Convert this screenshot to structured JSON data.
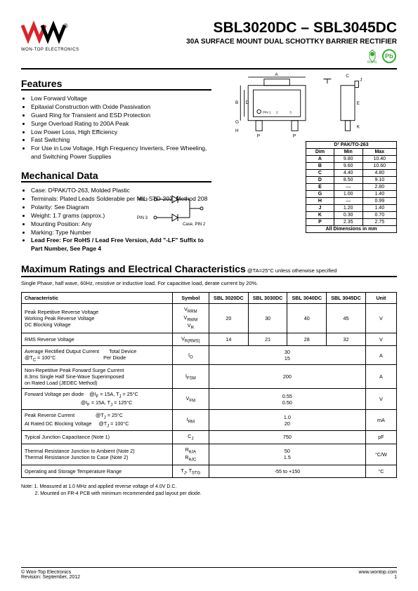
{
  "header": {
    "logo_text": "WON-TOP ELECTRONICS",
    "part_range": "SBL3020DC – SBL3045DC",
    "subtitle": "30A SURFACE MOUNT DUAL SCHOTTKY BARRIER RECTIFIER",
    "rohs_label": "RoHS",
    "pb_label": "Pb"
  },
  "features": {
    "title": "Features",
    "items": [
      "Low Forward Voltage",
      "Epitaxial Construction with Oxide Passivation",
      "Guard Ring for Transient and ESD Protection",
      "Surge Overload Rating to 200A Peak",
      "Low Power Loss, High Efficiency",
      "Fast Switching",
      "For Use in Low Voltage, High Frequency Inverters, Free Wheeling, and Switching Power Supplies"
    ]
  },
  "mechanical": {
    "title": "Mechanical Data",
    "items": [
      "Case: D²PAK/TO-263, Molded Plastic",
      "Terminals: Plated Leads Solderable per MIL-STD-202, Method 208",
      "Polarity: See Diagram",
      "Weight: 1.7 grams (approx.)",
      "Mounting Position: Any",
      "Marking: Type Number"
    ],
    "leadfree_bold": "Lead Free: For RoHS / Lead Free Version, Add \"-LF\" Suffix to Part Number, See Page 4"
  },
  "package_labels": {
    "A": "A",
    "B": "B",
    "C": "C",
    "D": "D",
    "E": "E",
    "G": "G",
    "H": "H",
    "J": "J",
    "K": "K",
    "P": "P",
    "pin1": "PIN 1",
    "pin2": "2",
    "pin3": "3",
    "sch_pin1": "PIN 1",
    "sch_pin3": "PIN 3",
    "sch_case": "Case, PIN 2"
  },
  "dimensions": {
    "header": "D² PAK/TO-263",
    "col_dim": "Dim",
    "col_min": "Min",
    "col_max": "Max",
    "rows": [
      {
        "d": "A",
        "min": "9.80",
        "max": "10.40"
      },
      {
        "d": "B",
        "min": "9.60",
        "max": "10.60"
      },
      {
        "d": "C",
        "min": "4.40",
        "max": "4.80"
      },
      {
        "d": "D",
        "min": "8.50",
        "max": "9.10"
      },
      {
        "d": "E",
        "min": "—",
        "max": "2.80"
      },
      {
        "d": "G",
        "min": "1.00",
        "max": "1.40"
      },
      {
        "d": "H",
        "min": "—",
        "max": "0.99"
      },
      {
        "d": "J",
        "min": "1.20",
        "max": "1.40"
      },
      {
        "d": "K",
        "min": "0.30",
        "max": "0.70"
      },
      {
        "d": "P",
        "min": "2.35",
        "max": "2.75"
      }
    ],
    "footer": "All Dimensions in mm"
  },
  "ratings": {
    "title": "Maximum Ratings and Electrical Characteristics",
    "cond": "@TA=25°C unless otherwise specified",
    "note": "Single Phase, half wave, 60Hz, resistive or inductive load. For capacitive load, derate current by 20%.",
    "cols": {
      "char": "Characteristic",
      "sym": "Symbol",
      "p1": "SBL 3020DC",
      "p2": "SBL 3030DC",
      "p3": "SBL 3040DC",
      "p4": "SBL 3045DC",
      "unit": "Unit"
    },
    "rows": [
      {
        "char": "Peak Repetitive Reverse Voltage<br>Working Peak Reverse Voltage<br>DC Blocking Voltage",
        "sym": "V<sub>RRM</sub><br>V<sub>RWM</sub><br>V<sub>R</sub>",
        "v": [
          "20",
          "30",
          "40",
          "45"
        ],
        "unit": "V"
      },
      {
        "char": "RMS Reverse Voltage",
        "sym": "V<sub>R(RMS)</sub>",
        "v": [
          "14",
          "21",
          "28",
          "32"
        ],
        "unit": "V"
      },
      {
        "char": "Average Rectified Output Current&nbsp;&nbsp;&nbsp;&nbsp;&nbsp;&nbsp;&nbsp;Total Device<br>@T<sub>C</sub> = 100°C&nbsp;&nbsp;&nbsp;&nbsp;&nbsp;&nbsp;&nbsp;&nbsp;&nbsp;&nbsp;&nbsp;&nbsp;&nbsp;&nbsp;&nbsp;&nbsp;&nbsp;&nbsp;&nbsp;&nbsp;&nbsp;&nbsp;&nbsp;&nbsp;&nbsp;&nbsp;&nbsp;&nbsp;&nbsp;&nbsp;&nbsp;&nbsp;&nbsp;&nbsp;Per Diode",
        "sym": "I<sub>O</sub>",
        "span": "30<br>15",
        "unit": "A"
      },
      {
        "char": "Non-Repetitive Peak Forward Surge Current<br>8.3ms Single Half Sine-Wave Superimposed<br>on Rated Load (JEDEC Method)",
        "sym": "I<sub>FSM</sub>",
        "span": "200",
        "unit": "A"
      },
      {
        "char": "Forward Voltage per diode&nbsp;&nbsp;&nbsp;&nbsp;@I<sub>F</sub> = 15A, T<sub>J</sub> = 25°C<br>&nbsp;&nbsp;&nbsp;&nbsp;&nbsp;&nbsp;&nbsp;&nbsp;&nbsp;&nbsp;&nbsp;&nbsp;&nbsp;&nbsp;&nbsp;&nbsp;&nbsp;&nbsp;&nbsp;&nbsp;&nbsp;&nbsp;&nbsp;&nbsp;&nbsp;&nbsp;&nbsp;&nbsp;&nbsp;&nbsp;&nbsp;&nbsp;&nbsp;&nbsp;&nbsp;&nbsp;&nbsp;&nbsp;&nbsp;&nbsp;@I<sub>F</sub> = 15A, T<sub>J</sub> = 125°C",
        "sym": "V<sub>FM</sub>",
        "span": "0.55<br>0.50",
        "unit": "V"
      },
      {
        "char": "Peak Reverse Current&nbsp;&nbsp;&nbsp;&nbsp;&nbsp;&nbsp;&nbsp;&nbsp;&nbsp;&nbsp;&nbsp;&nbsp;&nbsp;&nbsp;&nbsp;@T<sub>J</sub> = 25°C<br>At Rated DC Blocking Voltage&nbsp;&nbsp;&nbsp;&nbsp;&nbsp;@T<sub>J</sub> = 100°C",
        "sym": "I<sub>RM</sub>",
        "span": "1.0<br>20",
        "unit": "mA"
      },
      {
        "char": "Typical Junction Capacitance (Note 1)",
        "sym": "C<sub>J</sub>",
        "span": "750",
        "unit": "pF"
      },
      {
        "char": "Thermal Resistance Junction to Ambient (Note 2)<br>Thermal Resistance Junction to Case (Note 2)",
        "sym": "R<sub>θJA</sub><br>R<sub>θJC</sub>",
        "span": "50<br>1.5",
        "unit": "°C/W"
      },
      {
        "char": "Operating and Storage Temperature Range",
        "sym": "T<sub>J</sub>, T<sub>STG</sub>",
        "span": "-55 to +150",
        "unit": "°C"
      }
    ]
  },
  "notes": {
    "n1": "Note:  1. Measured at 1.0 MHz and applied reverse voltage of 4.0V D.C.",
    "n2": "          2. Mounted on FR-4 PCB with minimum recommended pad layout per diode."
  },
  "footer": {
    "left1": "© Won-Top Electronics",
    "left2": "Revision: September, 2012",
    "right": "www.wontop.com",
    "page": "1"
  },
  "colors": {
    "logo_red": "#d8232a",
    "green": "#3aa935",
    "text": "#000000"
  }
}
